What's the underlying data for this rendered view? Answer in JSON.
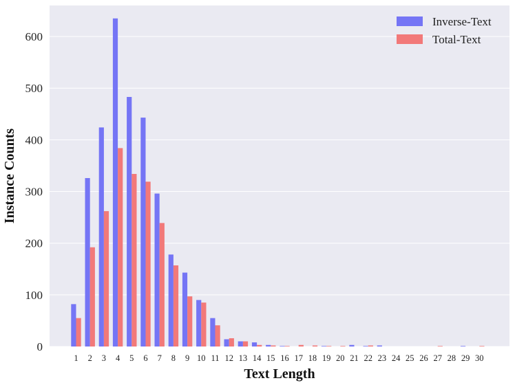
{
  "chart_data": {
    "type": "bar",
    "categories": [
      "1",
      "2",
      "3",
      "4",
      "5",
      "6",
      "7",
      "8",
      "9",
      "10",
      "11",
      "12",
      "13",
      "14",
      "15",
      "16",
      "17",
      "18",
      "19",
      "20",
      "21",
      "22",
      "23",
      "24",
      "25",
      "26",
      "27",
      "28",
      "29",
      "30"
    ],
    "series": [
      {
        "name": "Inverse-Text",
        "color": "#7575f5",
        "values": [
          82,
          326,
          424,
          635,
          483,
          443,
          296,
          178,
          143,
          90,
          55,
          14,
          10,
          8,
          3,
          1,
          0,
          0,
          1,
          0,
          3,
          1,
          2,
          0,
          0,
          0,
          0,
          0,
          1,
          0
        ]
      },
      {
        "name": "Total-Text",
        "color": "#f27979",
        "values": [
          55,
          192,
          262,
          384,
          334,
          319,
          239,
          157,
          97,
          85,
          41,
          16,
          10,
          3,
          2,
          1,
          3,
          2,
          1,
          1,
          0,
          2,
          0,
          0,
          0,
          0,
          1,
          0,
          0,
          1
        ]
      }
    ],
    "xlabel": "Text Length",
    "ylabel": "Instance Counts",
    "yticks": [
      "0",
      "100",
      "200",
      "300",
      "400",
      "500",
      "600"
    ],
    "ylim": [
      0,
      660
    ],
    "grid": true,
    "legend": "top-right",
    "plot_background": "#eaeaf2"
  }
}
